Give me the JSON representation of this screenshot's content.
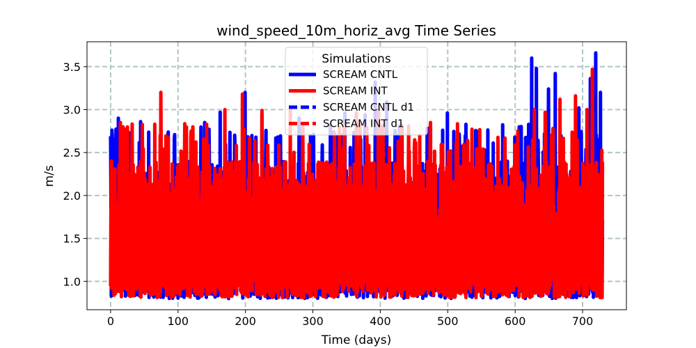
{
  "chart_data": {
    "type": "line",
    "title": "wind_speed_10m_horiz_avg Time Series",
    "xlabel": "Time (days)",
    "ylabel": "m/s",
    "xlim": [
      -35,
      765
    ],
    "ylim": [
      0.67,
      3.79
    ],
    "x_ticks": [
      0,
      100,
      200,
      300,
      400,
      500,
      600,
      700
    ],
    "y_ticks": [
      1.0,
      1.5,
      2.0,
      2.5,
      3.0,
      3.5
    ],
    "grid": true,
    "legend": {
      "title": "Simulations",
      "position": "top-center"
    },
    "series": [
      {
        "name": "SCREAM CNTL",
        "color": "#0000ff",
        "linestyle": "solid",
        "days": 730,
        "min": 0.74,
        "max": 3.66,
        "peaks": [
          [
            3,
            2.7
          ],
          [
            12,
            2.9
          ],
          [
            45,
            2.86
          ],
          [
            75,
            3.0
          ],
          [
            140,
            2.85
          ],
          [
            163,
            2.97
          ],
          [
            200,
            3.2
          ],
          [
            225,
            2.95
          ],
          [
            280,
            2.9
          ],
          [
            348,
            2.96
          ],
          [
            378,
            2.94
          ],
          [
            393,
            3.32
          ],
          [
            410,
            3.09
          ],
          [
            470,
            2.78
          ],
          [
            500,
            2.96
          ],
          [
            530,
            2.62
          ],
          [
            600,
            2.68
          ],
          [
            625,
            3.6
          ],
          [
            632,
            3.48
          ],
          [
            650,
            3.24
          ],
          [
            660,
            3.42
          ],
          [
            695,
            3.02
          ],
          [
            712,
            3.36
          ],
          [
            720,
            3.66
          ],
          [
            727,
            3.2
          ]
        ]
      },
      {
        "name": "SCREAM INT",
        "color": "#ff0000",
        "linestyle": "solid",
        "days": 730,
        "min": 0.75,
        "max": 3.47,
        "peaks": [
          [
            2,
            2.4
          ],
          [
            15,
            2.85
          ],
          [
            75,
            3.2
          ],
          [
            170,
            3.0
          ],
          [
            196,
            3.18
          ],
          [
            225,
            2.99
          ],
          [
            267,
            3.0
          ],
          [
            340,
            2.79
          ],
          [
            365,
            2.96
          ],
          [
            398,
            3.0
          ],
          [
            475,
            2.85
          ],
          [
            493,
            2.59
          ],
          [
            530,
            2.64
          ],
          [
            629,
            3.0
          ],
          [
            645,
            2.97
          ],
          [
            667,
            3.12
          ],
          [
            690,
            3.16
          ],
          [
            707,
            3.0
          ],
          [
            715,
            3.47
          ]
        ]
      },
      {
        "name": "SCREAM CNTL d1",
        "color": "#0000ff",
        "linestyle": "dashed"
      },
      {
        "name": "SCREAM INT d1",
        "color": "#ff0000",
        "linestyle": "dashed"
      }
    ]
  }
}
